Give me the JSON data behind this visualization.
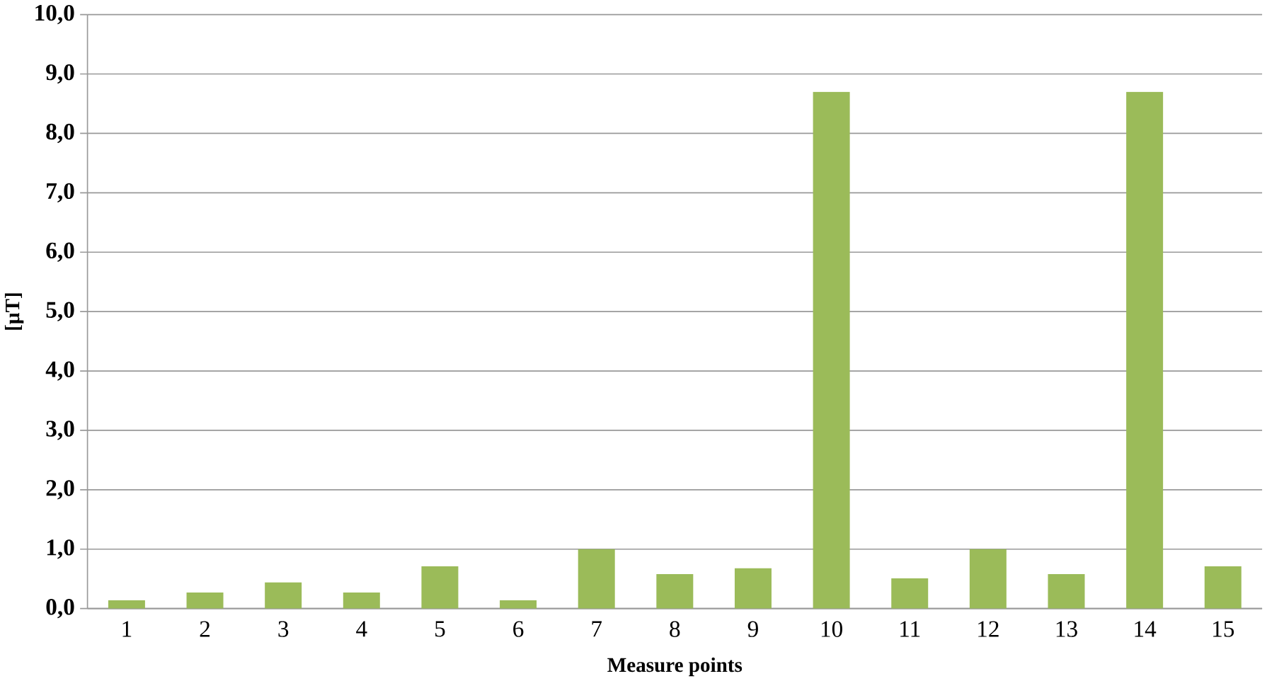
{
  "chart_data": {
    "type": "bar",
    "xlabel": "Measure points",
    "ylabel": "[µT]",
    "categories": [
      "1",
      "2",
      "3",
      "4",
      "5",
      "6",
      "7",
      "8",
      "9",
      "10",
      "11",
      "12",
      "13",
      "14",
      "15"
    ],
    "values": [
      0.14,
      0.27,
      0.44,
      0.27,
      0.71,
      0.14,
      1.0,
      0.58,
      0.68,
      8.7,
      0.51,
      1.0,
      0.58,
      8.7,
      0.71
    ],
    "color": "#9bbb59",
    "ylim": [
      0,
      10
    ],
    "yticks": [
      {
        "value": 0,
        "label": "0,0"
      },
      {
        "value": 1,
        "label": "1,0"
      },
      {
        "value": 2,
        "label": "2,0"
      },
      {
        "value": 3,
        "label": "3,0"
      },
      {
        "value": 4,
        "label": "4,0"
      },
      {
        "value": 5,
        "label": "5,0"
      },
      {
        "value": 6,
        "label": "6,0"
      },
      {
        "value": 7,
        "label": "7,0"
      },
      {
        "value": 8,
        "label": "8,0"
      },
      {
        "value": 9,
        "label": "9,0"
      },
      {
        "value": 10,
        "label": "10,0"
      }
    ],
    "grid": "y"
  }
}
